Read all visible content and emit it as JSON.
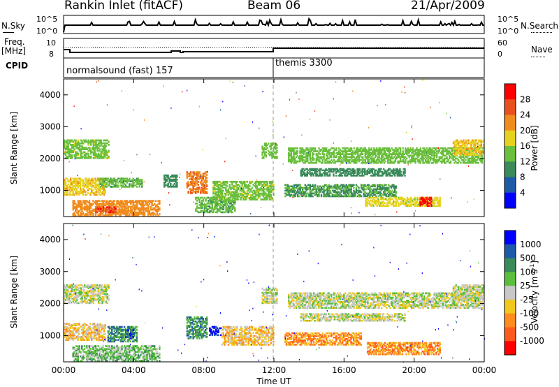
{
  "header": {
    "title": "Rankin Inlet (fitACF)",
    "beam": "Beam 06",
    "date": "21/Apr/2009"
  },
  "panel_labels": {
    "nsky": "N.Sky",
    "freq": "Freq.",
    "freq_unit": "[MHz]",
    "cpid": "CPID",
    "nsearch": "N.Search",
    "nave": "Nave"
  },
  "top_axis": {
    "left_hi": "10^5",
    "left_lo": "10^0",
    "right_hi": "10^5",
    "right_lo": "10^0",
    "freq_hi": "10",
    "freq_lo": "8",
    "nave_hi": "60",
    "nave_lo": "0"
  },
  "cpid_labels": [
    "normalsound (fast) 157",
    "themis 3300"
  ],
  "colors": {
    "power": [
      "#0000ff",
      "#1e5aa8",
      "#3a8a5a",
      "#6abf3c",
      "#e6d21e",
      "#f08c1e",
      "#e8501e",
      "#ff0000"
    ],
    "velocity": [
      "#ff0000",
      "#ff5a1e",
      "#ff8c1e",
      "#f0c81e",
      "#c8c8c8",
      "#5abf3c",
      "#3a8a5a",
      "#1e5aa8",
      "#0000ff"
    ]
  },
  "chart_data": [
    {
      "type": "heatmap",
      "name_hint": "power panel",
      "ylabel": "Slant Range [km]",
      "xlabel": "",
      "x_ticks": [
        "00:00",
        "04:00",
        "08:00",
        "12:00",
        "16:00",
        "20:00",
        "00:00"
      ],
      "y_ticks": [
        "1000",
        "2000",
        "3000",
        "4000"
      ],
      "ylim": [
        180,
        4500
      ],
      "colorbar_label": "Power [dB]",
      "colorbar_ticks": [
        "4",
        "8",
        "12",
        "16",
        "20",
        "24",
        "28"
      ],
      "colorbar_range": [
        0,
        30
      ],
      "bands": [
        {
          "t0": 0.0,
          "t1": 2.6,
          "r0": 2000,
          "r1": 2600,
          "level": 14
        },
        {
          "t0": 0.0,
          "t1": 2.4,
          "r0": 850,
          "r1": 1400,
          "level": 18
        },
        {
          "t0": 0.5,
          "t1": 5.5,
          "r0": 200,
          "r1": 700,
          "level": 20
        },
        {
          "t0": 1.8,
          "t1": 3.0,
          "r0": 300,
          "r1": 500,
          "level": 26
        },
        {
          "t0": 2.0,
          "t1": 4.5,
          "r0": 1100,
          "r1": 1400,
          "level": 12
        },
        {
          "t0": 5.7,
          "t1": 6.5,
          "r0": 1100,
          "r1": 1500,
          "level": 10
        },
        {
          "t0": 7.0,
          "t1": 8.2,
          "r0": 900,
          "r1": 1600,
          "level": 22
        },
        {
          "t0": 7.5,
          "t1": 9.8,
          "r0": 300,
          "r1": 800,
          "level": 12
        },
        {
          "t0": 8.5,
          "t1": 12.0,
          "r0": 700,
          "r1": 1300,
          "level": 14
        },
        {
          "t0": 11.3,
          "t1": 12.2,
          "r0": 2000,
          "r1": 2500,
          "level": 13
        },
        {
          "t0": 12.8,
          "t1": 23.9,
          "r0": 1850,
          "r1": 2350,
          "level": 13
        },
        {
          "t0": 13.5,
          "t1": 19.5,
          "r0": 1450,
          "r1": 1700,
          "level": 10
        },
        {
          "t0": 12.6,
          "t1": 19.0,
          "r0": 800,
          "r1": 1200,
          "level": 11
        },
        {
          "t0": 17.2,
          "t1": 21.5,
          "r0": 500,
          "r1": 800,
          "level": 16
        },
        {
          "t0": 20.3,
          "t1": 21.0,
          "r0": 500,
          "r1": 800,
          "level": 27
        },
        {
          "t0": 22.2,
          "t1": 24.0,
          "r0": 2100,
          "r1": 2600,
          "level": 18
        }
      ]
    },
    {
      "type": "heatmap",
      "name_hint": "velocity panel",
      "ylabel": "Slant Range [km]",
      "xlabel": "Time UT",
      "x_ticks": [
        "00:00",
        "04:00",
        "08:00",
        "12:00",
        "16:00",
        "20:00",
        "00:00"
      ],
      "y_ticks": [
        "1000",
        "2000",
        "3000",
        "4000"
      ],
      "ylim": [
        180,
        4500
      ],
      "colorbar_label": "Velocity [m s^-1]",
      "colorbar_ticks": [
        "1000",
        "500",
        "100",
        "25",
        "-25",
        "-100",
        "-500",
        "-1000"
      ],
      "bands": [
        {
          "t0": 0.0,
          "t1": 2.6,
          "r0": 2000,
          "r1": 2600,
          "level": 4
        },
        {
          "t0": 0.0,
          "t1": 2.4,
          "r0": 850,
          "r1": 1400,
          "level": 3
        },
        {
          "t0": 0.5,
          "t1": 5.5,
          "r0": 200,
          "r1": 700,
          "level": 5
        },
        {
          "t0": 2.5,
          "t1": 4.2,
          "r0": 800,
          "r1": 1300,
          "level": 6
        },
        {
          "t0": 3.5,
          "t1": 4.0,
          "r0": 900,
          "r1": 1200,
          "level": 7
        },
        {
          "t0": 7.0,
          "t1": 8.2,
          "r0": 900,
          "r1": 1600,
          "level": 6
        },
        {
          "t0": 8.3,
          "t1": 9.0,
          "r0": 1000,
          "r1": 1300,
          "level": 8
        },
        {
          "t0": 9.0,
          "t1": 12.0,
          "r0": 700,
          "r1": 1300,
          "level": 3
        },
        {
          "t0": 11.3,
          "t1": 12.2,
          "r0": 2000,
          "r1": 2500,
          "level": 4
        },
        {
          "t0": 12.8,
          "t1": 23.9,
          "r0": 1850,
          "r1": 2350,
          "level": 4
        },
        {
          "t0": 13.5,
          "t1": 19.5,
          "r0": 1450,
          "r1": 1700,
          "level": 4
        },
        {
          "t0": 12.6,
          "t1": 17.0,
          "r0": 700,
          "r1": 1100,
          "level": 2
        },
        {
          "t0": 17.3,
          "t1": 21.5,
          "r0": 400,
          "r1": 800,
          "level": 2
        },
        {
          "t0": 22.2,
          "t1": 24.0,
          "r0": 2100,
          "r1": 2600,
          "level": 4
        }
      ]
    }
  ]
}
